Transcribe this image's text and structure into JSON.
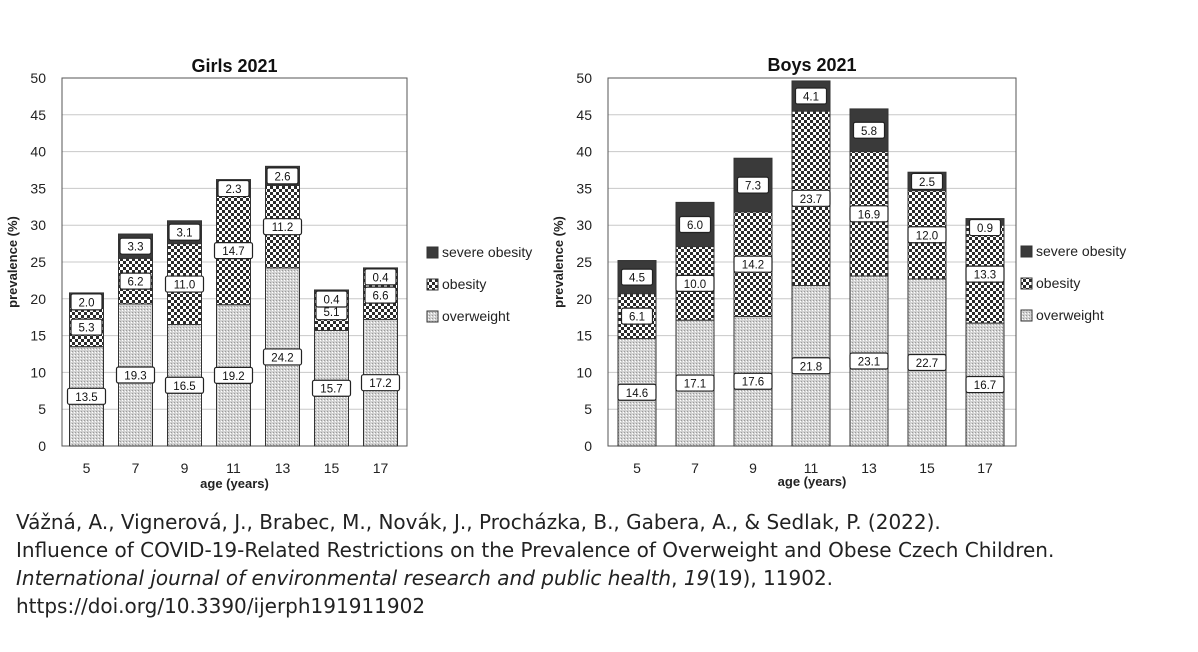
{
  "chart_data": [
    {
      "type": "bar",
      "stacked": true,
      "title": "Girls 2021",
      "xlabel": "age (years)",
      "ylabel": "prevalence (%)",
      "ylim": [
        0,
        50
      ],
      "yticks": [
        0,
        5,
        10,
        15,
        20,
        25,
        30,
        35,
        40,
        45,
        50
      ],
      "grid": true,
      "legend_position": "right",
      "categories": [
        "5",
        "7",
        "9",
        "11",
        "13",
        "15",
        "17"
      ],
      "series": [
        {
          "name": "overweight",
          "values": [
            13.5,
            19.3,
            16.5,
            19.2,
            24.2,
            15.7,
            17.2
          ],
          "labels": [
            "13.5",
            "19.3",
            "16.5",
            "19.2",
            "24.2",
            "15.7",
            "17.2"
          ]
        },
        {
          "name": "obesity",
          "values": [
            5.3,
            6.2,
            11.0,
            14.7,
            11.2,
            5.1,
            6.6
          ],
          "labels": [
            "5.3",
            "6.2",
            "11.0",
            "14.7",
            "11.2",
            "5.1",
            "6.6"
          ]
        },
        {
          "name": "severe obesity",
          "values": [
            2.0,
            3.3,
            3.1,
            2.3,
            2.6,
            0.4,
            0.4
          ],
          "labels": [
            "2.0",
            "3.3",
            "3.1",
            "2.3",
            "2.6",
            "0.4",
            "0.4"
          ]
        }
      ]
    },
    {
      "type": "bar",
      "stacked": true,
      "title": "Boys 2021",
      "xlabel": "age (years)",
      "ylabel": "prevalence (%)",
      "ylim": [
        0,
        50
      ],
      "yticks": [
        0,
        5,
        10,
        15,
        20,
        25,
        30,
        35,
        40,
        45,
        50
      ],
      "grid": true,
      "legend_position": "right",
      "categories": [
        "5",
        "7",
        "9",
        "11",
        "13",
        "15",
        "17"
      ],
      "series": [
        {
          "name": "overweight",
          "values": [
            14.6,
            17.1,
            17.6,
            21.8,
            23.1,
            22.7,
            16.7
          ],
          "labels": [
            "14.6",
            "17.1",
            "17.6",
            "21.8",
            "23.1",
            "22.7",
            "16.7"
          ]
        },
        {
          "name": "obesity",
          "values": [
            6.1,
            10.0,
            14.2,
            23.7,
            16.9,
            12.0,
            13.3
          ],
          "labels": [
            "6.1",
            "10.0",
            "14.2",
            "23.7",
            "16.9",
            "12.0",
            "13.3"
          ]
        },
        {
          "name": "severe obesity",
          "values": [
            4.5,
            6.0,
            7.3,
            4.1,
            5.8,
            2.5,
            0.9
          ],
          "labels": [
            "4.5",
            "6.0",
            "7.3",
            "4.1",
            "5.8",
            "2.5",
            "0.9"
          ]
        }
      ]
    }
  ],
  "colors": {
    "severe_obesity": "#3a3a3a",
    "obesity_dark": "#2b2b2b",
    "overweight_fill": "#c8c8c8",
    "grid": "#c8c8c8"
  },
  "citation": {
    "authors": "Vážná, A., Vignerová, J., Brabec, M., Novák, J., Procházka, B., Gabera, A., & Sedlak, P. (2022).",
    "title": "Influence of COVID-19-Related Restrictions on the Prevalence of Overweight and Obese Czech Children.",
    "journal": "International journal of environmental research and public health",
    "sep1": ",",
    "volume": "19",
    "issue": "(19), 11902.",
    "doi": "https://doi.org/10.3390/ijerph191911902"
  }
}
